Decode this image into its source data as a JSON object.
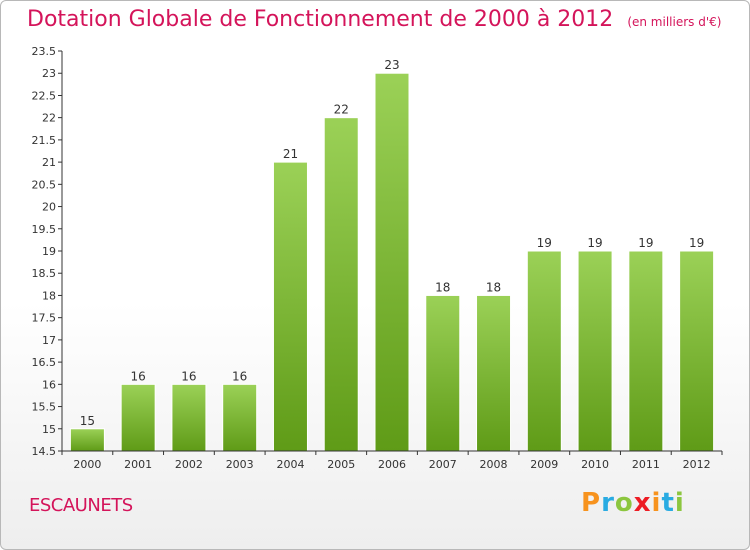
{
  "header": {
    "title": "Dotation Globale de Fonctionnement de 2000 à 2012",
    "unit": "(en milliers d'€)"
  },
  "footer": {
    "commune": "ESCAUNETS",
    "brand_letters": [
      "P",
      "r",
      "o",
      "x",
      "i",
      "t",
      "i"
    ],
    "brand_colors": [
      "#f7931e",
      "#29abe2",
      "#8cc63f",
      "#ed1c24",
      "#f7931e",
      "#29abe2",
      "#8cc63f"
    ]
  },
  "colors": {
    "title": "#d4145a",
    "bar_top": "#9bd157",
    "bar_bottom": "#5f9b17",
    "axis": "#333333"
  },
  "chart_data": {
    "type": "bar",
    "categories": [
      "2000",
      "2001",
      "2002",
      "2003",
      "2004",
      "2005",
      "2006",
      "2007",
      "2008",
      "2009",
      "2010",
      "2011",
      "2012"
    ],
    "values": [
      15,
      16,
      16,
      16,
      21,
      22,
      23,
      18,
      18,
      19,
      19,
      19,
      19
    ],
    "data_labels": [
      "15",
      "16",
      "16",
      "16",
      "21",
      "22",
      "23",
      "18",
      "18",
      "19",
      "19",
      "19",
      "19"
    ],
    "ylim": [
      14.5,
      23.5
    ],
    "yticks": [
      14.5,
      15,
      15.5,
      16,
      16.5,
      17,
      17.5,
      18,
      18.5,
      19,
      19.5,
      20,
      20.5,
      21,
      21.5,
      22,
      22.5,
      23,
      23.5
    ],
    "ytick_labels": [
      "14.5",
      "15",
      "15.5",
      "16",
      "16.5",
      "17",
      "17.5",
      "18",
      "18.5",
      "19",
      "19.5",
      "20",
      "20.5",
      "21",
      "21.5",
      "22",
      "22.5",
      "23",
      "23.5"
    ],
    "grid": false,
    "legend": "none"
  }
}
